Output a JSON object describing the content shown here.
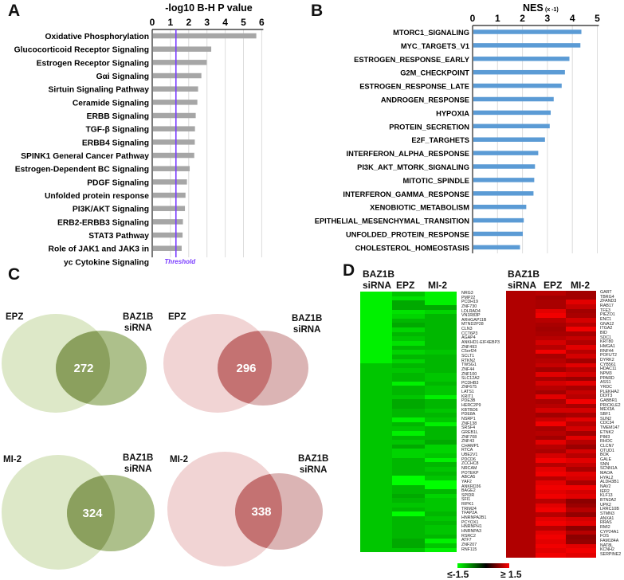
{
  "panels": {
    "a": "A",
    "b": "B",
    "c": "C",
    "d": "D"
  },
  "chart_data": [
    {
      "type": "bar",
      "orientation": "horizontal",
      "title": "-log10 B-H P value",
      "xlim": [
        0,
        6
      ],
      "xticks": [
        "0",
        "1",
        "2",
        "3",
        "4",
        "5",
        "6"
      ],
      "grid": true,
      "threshold": {
        "label": "Threshold",
        "value": 1.3,
        "color": "#7a3cff"
      },
      "bar_color": "#a6a6a6",
      "categories": [
        "Oxidative Phosphorylation",
        "Glucocorticoid Receptor Signaling",
        "Estrogen Receptor Signaling",
        "Gαi Signaling",
        "Sirtuin Signaling Pathway",
        "Ceramide Signaling",
        "ERBB Signaling",
        "TGF-β Signaling",
        "ERBB4 Signaling",
        "SPINK1 General Cancer Pathway",
        "Estrogen-Dependent BC Signaling",
        "PDGF Signaling",
        "Unfolded protein response",
        "PI3K/AKT Signaling",
        "ERB2-ERBB3 Signaling",
        "STAT3 Pathway",
        "Role of JAK1 and JAK3 in|yc Cytokine Signaling"
      ],
      "values": [
        5.66,
        3.19,
        2.94,
        2.65,
        2.47,
        2.43,
        2.34,
        2.3,
        2.29,
        2.26,
        2.01,
        1.86,
        1.78,
        1.75,
        1.64,
        1.62,
        1.57
      ]
    },
    {
      "type": "bar",
      "orientation": "horizontal",
      "title": "NES",
      "title_suffix": "(x -1)",
      "xlim": [
        0,
        5
      ],
      "xticks": [
        "0",
        "1",
        "2",
        "3",
        "4",
        "5"
      ],
      "grid": true,
      "bar_color": "#5b9bd5",
      "categories": [
        "MTORC1_SIGNALING",
        "MYC_TARGETS_V1",
        "ESTROGEN_RESPONSE_EARLY",
        "G2M_CHECKPOINT",
        "ESTROGEN_RESPONSE_LATE",
        "ANDROGEN_RESPONSE",
        "HYPOXIA",
        "PROTEIN_SECRETION",
        "E2F_TARGHETS",
        "INTERFERON_ALPHA_RESPONSE",
        "PI3K_AKT_MTORK_SIGNALING",
        "MITOTIC_SPINDLE",
        "INTERFERON_GAMMA_RESPONSE",
        "XENOBIOTIC_METABOLISM",
        "EPITHELIAL_MESENCHYMAL_TRANSITION",
        "UNFOLDED_PROTEIN_RESPONSE",
        "CHOLESTEROL_HOMEOSTASIS"
      ],
      "values": [
        4.33,
        4.29,
        3.85,
        3.67,
        3.54,
        3.22,
        3.1,
        3.06,
        2.87,
        2.6,
        2.47,
        2.44,
        2.41,
        2.12,
        2.02,
        1.98,
        1.87
      ]
    },
    {
      "type": "venn",
      "diagrams": [
        {
          "left": "EPZ",
          "right": "BAZ1B siRNA",
          "right_lines": [
            "BAZ1B",
            "siRNA"
          ],
          "overlap": "272",
          "palette": "green"
        },
        {
          "left": "EPZ",
          "right": "BAZ1B siRNA",
          "right_lines": [
            "BAZ1B",
            "siRNA"
          ],
          "overlap": "296",
          "palette": "red"
        },
        {
          "left": "MI-2",
          "right": "BAZ1B siRNA",
          "right_lines": [
            "BAZ1B",
            "siRNA"
          ],
          "overlap": "324",
          "palette": "green"
        },
        {
          "left": "MI-2",
          "right": "BAZ1B siRNA",
          "right_lines": [
            "BAZ1B",
            "siRNA"
          ],
          "overlap": "338",
          "palette": "red"
        }
      ]
    },
    {
      "type": "heatmap",
      "columns": [
        "BAZ1B|siRNA",
        "EPZ",
        "MI-2"
      ],
      "legend": {
        "min_label": "≤-1.5",
        "max_label": "≥ 1.5",
        "min": -1.5,
        "max": 1.5,
        "low_color": "#00ff00",
        "mid_color": "#000000",
        "high_color": "#ff0000"
      },
      "down": {
        "genes": [
          "NRG3",
          "PMP22",
          "PCDH19",
          "ZNF730",
          "LDLRAD4",
          "VN1R83P",
          "ARHGAP11B",
          "MTND2P28",
          "CLN3",
          "CCT6P3",
          "AGAP4",
          "ANKHD1-EIF4EBP3",
          "ZNF493",
          "C5orf24",
          "SCLT1",
          "RTKN2",
          "TWSG1",
          "ZNF44",
          "ZNF100",
          "SLC12A2",
          "PCDHB3",
          "ZNF675",
          "LATS1",
          "KRIT1",
          "PDE3B",
          "HERC2P9",
          "KBTBD6",
          "PDE8A",
          "NSRP1",
          "ZNF138",
          "SRSF4",
          "GREB1L",
          "ZNF708",
          "ZNF43",
          "CHAMP1",
          "RTCA",
          "UBE2V1",
          "PDCD6",
          "ZCCHC8",
          "NRCAM",
          "POTEKP",
          "ABCA5",
          "YAF2",
          "ANKRD36",
          "BAGE2",
          "SPIDR",
          "SFI1",
          "RIPK1",
          "TRIM24",
          "TFAP2A",
          "HNRNPA2B1",
          "PCYOX1",
          "HNRNPH1",
          "HNRNPA3",
          "RSRC2",
          "ATF7",
          "ZNF207",
          "RNF115"
        ],
        "values": [
          [
            -1.4,
            -1.1,
            -1.4
          ],
          [
            -1.4,
            -1.3,
            -1.4
          ],
          [
            -1.4,
            -0.9,
            -1.4
          ],
          [
            -1.4,
            -0.9,
            -0.9
          ],
          [
            -1.4,
            -1.3,
            -1.2
          ],
          [
            -1.4,
            -1.2,
            -1.0
          ],
          [
            -1.4,
            -1.0,
            -1.0
          ],
          [
            -1.4,
            -0.9,
            -1.0
          ],
          [
            -1.4,
            -1.2,
            -1.0
          ],
          [
            -1.4,
            -1.0,
            -1.0
          ],
          [
            -1.4,
            -1.1,
            -1.0
          ],
          [
            -1.4,
            -1.3,
            -1.0
          ],
          [
            -1.4,
            -1.0,
            -1.0
          ],
          [
            -1.4,
            -1.2,
            -1.1
          ],
          [
            -1.4,
            -1.0,
            -1.0
          ],
          [
            -1.4,
            -1.2,
            -1.0
          ],
          [
            -1.1,
            -1.0,
            -1.0
          ],
          [
            -1.1,
            -1.1,
            -1.0
          ],
          [
            -1.1,
            -1.0,
            -1.1
          ],
          [
            -1.1,
            -1.0,
            -1.1
          ],
          [
            -1.1,
            -1.4,
            -1.0
          ],
          [
            -1.1,
            -1.0,
            -1.1
          ],
          [
            -1.1,
            -1.0,
            -1.1
          ],
          [
            -1.1,
            -1.1,
            -1.4
          ],
          [
            -1.1,
            -0.9,
            -1.0
          ],
          [
            -1.1,
            -0.9,
            -1.0
          ],
          [
            -1.1,
            -1.0,
            -1.1
          ],
          [
            -1.1,
            -1.0,
            -1.0
          ],
          [
            -1.1,
            -1.4,
            -1.1
          ],
          [
            -1.1,
            -1.0,
            -1.4
          ],
          [
            -1.1,
            -1.1,
            -1.0
          ],
          [
            -1.1,
            -1.4,
            -1.0
          ],
          [
            -1.1,
            -1.0,
            -1.0
          ],
          [
            -1.1,
            -1.1,
            -0.9
          ],
          [
            -1.1,
            -0.9,
            -1.2
          ],
          [
            -1.1,
            -1.2,
            -1.2
          ],
          [
            -1.1,
            -1.2,
            -1.1
          ],
          [
            -1.1,
            -1.0,
            -1.4
          ],
          [
            -1.1,
            -1.0,
            -1.0
          ],
          [
            -1.1,
            -1.0,
            -1.1
          ],
          [
            -1.1,
            -1.0,
            -1.0
          ],
          [
            -1.1,
            -1.5,
            -1.1
          ],
          [
            -1.1,
            -1.5,
            -1.5
          ],
          [
            -1.1,
            -1.0,
            -1.5
          ],
          [
            -1.1,
            -1.0,
            -1.0
          ],
          [
            -1.1,
            -0.9,
            -1.2
          ],
          [
            -1.1,
            -1.0,
            -1.1
          ],
          [
            -1.1,
            -1.1,
            -1.1
          ],
          [
            -1.1,
            -1.0,
            -1.1
          ],
          [
            -1.1,
            -1.5,
            -1.0
          ],
          [
            -1.1,
            -1.0,
            -1.1
          ],
          [
            -1.1,
            -1.0,
            -1.0
          ],
          [
            -1.1,
            -1.0,
            -1.1
          ],
          [
            -1.1,
            -1.0,
            -1.1
          ],
          [
            -1.1,
            -1.0,
            -1.0
          ],
          [
            -1.1,
            -0.9,
            -1.4
          ],
          [
            -1.1,
            -0.9,
            -1.1
          ],
          [
            -1.1,
            -1.1,
            -1.4
          ]
        ]
      },
      "up": {
        "genes": [
          "GART",
          "TBRG4",
          "ZFAND3",
          "RAB17",
          "TFE3",
          "PIEZO1",
          "ENC1",
          "GNA12",
          "ITGA2",
          "BID",
          "SDC1",
          "KRT80",
          "HMGA1",
          "RNF44",
          "POFUT2",
          "DYRK2",
          "CYB561",
          "HDAC11",
          "NPM3",
          "PPARD",
          "ASS1",
          "YRDC",
          "PLEKHA2",
          "DDIT3",
          "GABBR1",
          "PRICKLE2",
          "MEX3A",
          "SBF1",
          "SUN2",
          "CDC34",
          "TMEM147",
          "ETNK2",
          "PIM3",
          "RHOC",
          "CLCN7",
          "OTUD1",
          "BOK",
          "GALE",
          "SNN",
          "SCNN1A",
          "MAOA",
          "HYAL2",
          "ALDH3B1",
          "NAV2",
          "IER2",
          "KLF13",
          "BTN2A2",
          "UPK2",
          "LRRC10B",
          "STMN3",
          "ANXA1",
          "RRAS",
          "RMI2",
          "CYP24A1",
          "FOS",
          "FAM184A",
          "NAT8L",
          "KCNH2",
          "SERPINE2"
        ],
        "values": [
          [
            0.95,
            1.0,
            0.85
          ],
          [
            0.95,
            0.85,
            0.85
          ],
          [
            0.95,
            0.9,
            1.3
          ],
          [
            0.95,
            0.9,
            1.1
          ],
          [
            0.95,
            1.3,
            0.85
          ],
          [
            0.95,
            1.4,
            0.9
          ],
          [
            0.95,
            1.0,
            1.2
          ],
          [
            0.95,
            0.9,
            1.0
          ],
          [
            0.95,
            0.85,
            1.4
          ],
          [
            0.95,
            0.9,
            0.9
          ],
          [
            0.95,
            1.0,
            1.1
          ],
          [
            0.95,
            1.2,
            0.95
          ],
          [
            0.95,
            1.0,
            1.3
          ],
          [
            0.95,
            1.4,
            1.0
          ],
          [
            0.95,
            0.9,
            1.2
          ],
          [
            0.95,
            1.0,
            0.85
          ],
          [
            0.95,
            1.1,
            1.3
          ],
          [
            0.95,
            0.85,
            1.0
          ],
          [
            0.95,
            1.3,
            1.2
          ],
          [
            0.95,
            0.9,
            0.8
          ],
          [
            0.95,
            1.2,
            1.3
          ],
          [
            0.95,
            1.0,
            0.9
          ],
          [
            0.95,
            0.85,
            1.1
          ],
          [
            0.95,
            1.3,
            1.0
          ],
          [
            0.95,
            0.9,
            1.4
          ],
          [
            0.95,
            1.0,
            0.9
          ],
          [
            0.95,
            1.2,
            1.2
          ],
          [
            0.95,
            0.85,
            0.9
          ],
          [
            0.95,
            1.1,
            1.3
          ],
          [
            0.95,
            1.4,
            1.0
          ],
          [
            0.95,
            0.9,
            1.2
          ],
          [
            0.95,
            1.0,
            0.85
          ],
          [
            0.95,
            0.85,
            1.3
          ],
          [
            0.95,
            1.3,
            1.0
          ],
          [
            0.95,
            1.0,
            0.8
          ],
          [
            0.95,
            0.9,
            1.2
          ],
          [
            0.95,
            1.2,
            1.0
          ],
          [
            0.95,
            1.4,
            1.3
          ],
          [
            0.95,
            1.0,
            1.1
          ],
          [
            0.95,
            1.3,
            0.9
          ],
          [
            0.95,
            1.4,
            1.3
          ],
          [
            0.95,
            1.0,
            1.2
          ],
          [
            0.95,
            1.3,
            0.9
          ],
          [
            0.95,
            1.4,
            1.4
          ],
          [
            0.95,
            1.3,
            1.2
          ],
          [
            0.95,
            1.4,
            1.3
          ],
          [
            0.95,
            1.0,
            0.7
          ],
          [
            0.95,
            1.3,
            0.8
          ],
          [
            0.95,
            1.4,
            1.0
          ],
          [
            0.95,
            1.0,
            0.75
          ],
          [
            0.95,
            1.3,
            1.2
          ],
          [
            0.95,
            1.4,
            1.3
          ],
          [
            0.95,
            1.0,
            0.7
          ],
          [
            0.95,
            1.3,
            1.0
          ],
          [
            0.95,
            1.4,
            0.7
          ],
          [
            0.95,
            1.3,
            0.75
          ],
          [
            0.95,
            1.4,
            1.3
          ],
          [
            0.95,
            1.3,
            1.4
          ],
          [
            0.95,
            1.4,
            1.3
          ]
        ]
      }
    }
  ]
}
